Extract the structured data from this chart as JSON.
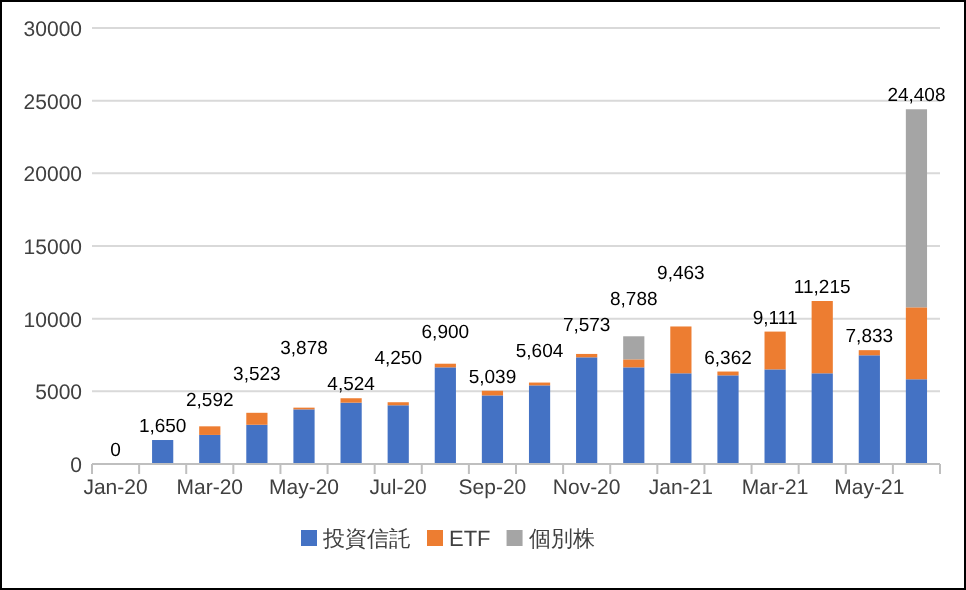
{
  "chart_data": {
    "type": "bar",
    "stacked": true,
    "categories": [
      "Jan-20",
      null,
      "Mar-20",
      null,
      "May-20",
      null,
      "Jul-20",
      null,
      "Sep-20",
      null,
      "Nov-20",
      null,
      "Jan-21",
      null,
      "Mar-21",
      null,
      "May-21",
      null
    ],
    "series": [
      {
        "name": "投資信託",
        "color": "#4472c4",
        "values": [
          0,
          1650,
          2000,
          2700,
          3760,
          4220,
          4040,
          6650,
          4720,
          5410,
          7340,
          6650,
          6240,
          6100,
          6510,
          6240,
          7480,
          5830
        ]
      },
      {
        "name": "ETF",
        "color": "#ed7d31",
        "values": [
          0,
          0,
          592,
          823,
          118,
          304,
          210,
          250,
          319,
          194,
          233,
          550,
          3223,
          262,
          2601,
          4975,
          353,
          4950
        ]
      },
      {
        "name": "個別株",
        "color": "#a5a5a5",
        "values": [
          0,
          0,
          0,
          0,
          0,
          0,
          0,
          0,
          0,
          0,
          0,
          1588,
          0,
          0,
          0,
          0,
          0,
          13628
        ]
      }
    ],
    "totals": [
      "0",
      "1,650",
      "2,592",
      "3,523",
      "3,878",
      "4,524",
      "4,250",
      "6,900",
      "5,039",
      "5,604",
      "7,573",
      "8,788",
      "9,463",
      "6,362",
      "9,111",
      "11,215",
      "7,833",
      "24,408"
    ],
    "ylim": [
      0,
      30000
    ],
    "yticks": [
      0,
      5000,
      10000,
      15000,
      20000,
      25000,
      30000
    ],
    "grid": "y",
    "legend": "bottom"
  }
}
